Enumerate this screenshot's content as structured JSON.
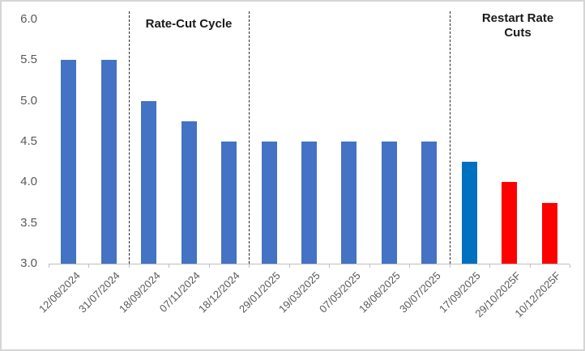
{
  "chart_data": {
    "type": "bar",
    "title": "",
    "xlabel": "",
    "ylabel": "",
    "categories": [
      "12/06/2024",
      "31/07/2024",
      "18/09/2024",
      "07/11/2024",
      "18/12/2024",
      "29/01/2025",
      "19/03/2025",
      "07/05/2025",
      "18/06/2025",
      "30/07/2025",
      "17/09/2025",
      "29/10/2025F",
      "10/12/2025F"
    ],
    "values": [
      5.5,
      5.5,
      5.0,
      4.75,
      4.5,
      4.5,
      4.5,
      4.5,
      4.5,
      4.5,
      4.25,
      4.0,
      3.75
    ],
    "bar_colors": [
      "#4472C4",
      "#4472C4",
      "#4472C4",
      "#4472C4",
      "#4472C4",
      "#4472C4",
      "#4472C4",
      "#4472C4",
      "#4472C4",
      "#4472C4",
      "#0070C0",
      "#FF0000",
      "#FF0000"
    ],
    "ylim": [
      3.0,
      6.0
    ],
    "yticks": [
      6.0,
      5.5,
      5.0,
      4.5,
      4.0,
      3.5,
      3.0
    ],
    "ytick_labels": [
      "6.0",
      "5.5",
      "5.0",
      "4.5",
      "4.0",
      "3.5",
      "3.0"
    ],
    "grid": false,
    "legend": null,
    "separator_after_index": [
      1,
      4,
      9
    ],
    "annotations": [
      {
        "id": "rate-cut-cycle",
        "text": "Rate-Cut Cycle"
      },
      {
        "id": "restart-rate-cuts",
        "text": "Restart Rate Cuts"
      }
    ],
    "colors": {
      "bar_default": "#4472C4",
      "bar_highlight": "#0070C0",
      "bar_forecast": "#FF0000",
      "axis": "#BFBFBF",
      "tick_label": "#595959",
      "separator": "#262626"
    }
  }
}
